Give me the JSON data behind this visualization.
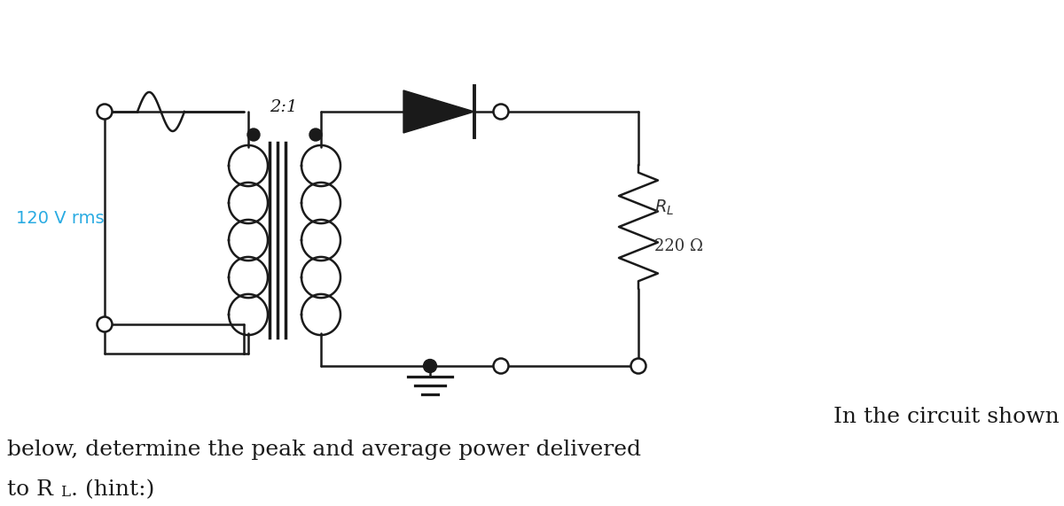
{
  "bg_color": "#ffffff",
  "line_color": "#1a1a1a",
  "label_color": "#29ABE2",
  "resistor_label_color": "#4a4a4a",
  "text_color": "#1a1a1a",
  "voltage_label": "120 V rms",
  "ratio_label": "2:1",
  "rl_value": "220 Ω",
  "body_text_line1": "In the circuit shown",
  "body_text_line2": "below, determine the peak and average power delivered",
  "body_text_line3_a": "to R",
  "body_text_line3_sub": "L",
  "body_text_line3_b": ". (hint:)",
  "figsize": [
    12.0,
    5.71
  ],
  "dpi": 100
}
